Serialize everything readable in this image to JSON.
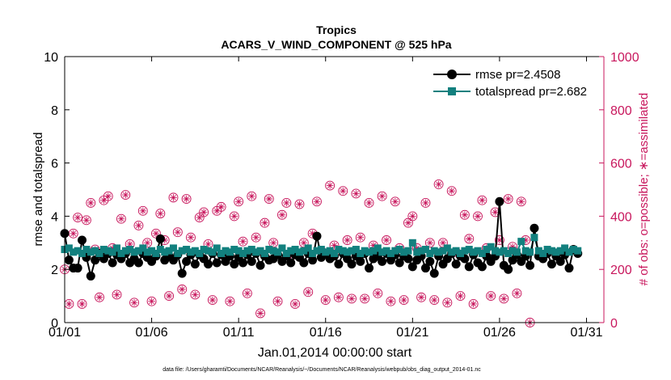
{
  "chart_data": {
    "type": "line",
    "title": "Tropics",
    "subtitle": "ACARS_V_WIND_COMPONENT @ 525 hPa",
    "xlabel": "Jan.01,2014 00:00:00 start",
    "ylabel_left": "rmse and totalspread",
    "ylabel_right": "# of obs: o=possible; ∗=assimilated",
    "xlim": [
      1,
      32
    ],
    "ylim_left": [
      0,
      10
    ],
    "ylim_right": [
      0,
      1000
    ],
    "x_ticks": [
      1,
      6,
      11,
      16,
      21,
      26,
      31
    ],
    "x_tick_labels": [
      "01/01",
      "01/06",
      "01/11",
      "01/16",
      "01/21",
      "01/26",
      "01/31"
    ],
    "y_left_ticks": [
      "0",
      "2",
      "4",
      "6",
      "8",
      "10"
    ],
    "y_right_ticks": [
      "0",
      "200",
      "400",
      "600",
      "800",
      "1000"
    ],
    "colors": {
      "rmse": "#000000",
      "spread": "#12807e",
      "obs": "#c8175d"
    },
    "legend": [
      {
        "name": "rmse pr=2.4508",
        "marker": "circle"
      },
      {
        "name": "totalspread pr=2.682",
        "marker": "square"
      }
    ],
    "legend_position": "top-right",
    "footnote": "data file: /Users/gharamti/Documents/NCAR/Reanalysis/~/Documents/NCAR/Reanalysis/webpub/obs_diag_output_2014-01.nc",
    "series": [
      {
        "name": "rmse",
        "axis": "left",
        "x_start": 1,
        "x_step": 0.25,
        "values": [
          3.35,
          2.35,
          2.05,
          2.05,
          3.1,
          2.45,
          1.75,
          2.35,
          2.6,
          2.4,
          2.6,
          2.25,
          2.55,
          2.4,
          2.6,
          2.25,
          2.4,
          2.25,
          2.6,
          2.45,
          2.3,
          2.5,
          3.15,
          2.35,
          2.5,
          2.35,
          2.55,
          1.85,
          2.3,
          2.55,
          2.2,
          2.55,
          2.4,
          2.2,
          2.6,
          2.25,
          2.55,
          2.3,
          2.5,
          2.2,
          2.45,
          2.25,
          2.55,
          2.3,
          2.6,
          2.15,
          2.5,
          2.35,
          2.4,
          2.55,
          2.3,
          2.5,
          2.25,
          2.55,
          2.45,
          2.25,
          2.6,
          2.35,
          3.25,
          2.45,
          2.6,
          2.4,
          2.5,
          2.2,
          2.6,
          2.4,
          2.2,
          2.5,
          2.3,
          2.6,
          2.05,
          2.4,
          2.5,
          2.3,
          2.6,
          2.35,
          2.55,
          2.25,
          2.5,
          2.4,
          2.1,
          2.35,
          2.5,
          2.05,
          2.3,
          1.85,
          2.5,
          2.2,
          2.4,
          2.6,
          2.2,
          2.5,
          2.4,
          2.1,
          2.55,
          2.25,
          2.1,
          2.5,
          2.3,
          2.5,
          4.55,
          2.15,
          2.0,
          2.35,
          2.55,
          2.3,
          2.5,
          2.15,
          3.55,
          2.5,
          2.4,
          2.6,
          2.2,
          2.5,
          2.3,
          2.55,
          2.05,
          2.75,
          2.6
        ]
      },
      {
        "name": "totalspread",
        "axis": "left",
        "x_start": 1,
        "x_step": 0.25,
        "values": [
          2.75,
          2.8,
          2.65,
          2.7,
          2.6,
          2.75,
          2.65,
          2.7,
          2.6,
          2.75,
          2.7,
          2.65,
          2.8,
          2.6,
          2.7,
          2.75,
          2.65,
          2.7,
          2.8,
          2.65,
          2.7,
          2.6,
          2.75,
          2.65,
          2.7,
          2.8,
          2.6,
          2.7,
          2.75,
          2.65,
          2.7,
          2.6,
          2.75,
          2.7,
          2.65,
          2.8,
          2.6,
          2.7,
          2.65,
          2.75,
          2.7,
          2.6,
          2.7,
          2.75,
          2.65,
          2.7,
          2.6,
          2.75,
          2.7,
          2.65,
          2.8,
          2.6,
          2.7,
          2.75,
          2.65,
          2.7,
          2.8,
          2.6,
          2.7,
          2.75,
          2.65,
          2.7,
          2.6,
          2.75,
          2.7,
          2.65,
          2.7,
          2.75,
          2.6,
          2.7,
          2.65,
          2.7,
          2.8,
          2.65,
          2.7,
          2.6,
          2.7,
          2.75,
          2.65,
          2.7,
          3.0,
          2.65,
          2.7,
          2.75,
          2.6,
          2.7,
          2.65,
          2.7,
          2.8,
          2.65,
          2.7,
          2.6,
          2.7,
          2.75,
          2.65,
          2.7,
          2.6,
          2.75,
          2.85,
          2.7,
          2.65,
          2.7,
          2.6,
          2.7,
          2.65,
          3.05,
          2.7,
          2.65,
          3.2,
          2.7,
          2.6,
          2.75,
          2.7,
          2.65,
          2.7,
          2.8,
          2.65,
          2.75,
          2.7
        ]
      },
      {
        "name": "obs_possible",
        "axis": "right",
        "x_start": 1,
        "x_step": 0.25,
        "values": [
          200,
          70,
          335,
          395,
          70,
          385,
          450,
          275,
          95,
          460,
          475,
          280,
          105,
          390,
          480,
          295,
          75,
          365,
          420,
          300,
          80,
          335,
          410,
          310,
          100,
          470,
          340,
          125,
          465,
          320,
          105,
          395,
          415,
          295,
          85,
          420,
          435,
          260,
          80,
          400,
          455,
          305,
          110,
          475,
          320,
          35,
          375,
          465,
          300,
          80,
          405,
          450,
          250,
          70,
          445,
          300,
          115,
          335,
          455,
          270,
          85,
          515,
          290,
          95,
          495,
          310,
          90,
          485,
          320,
          90,
          450,
          290,
          110,
          475,
          310,
          80,
          455,
          280,
          85,
          375,
          400,
          280,
          95,
          450,
          300,
          85,
          520,
          300,
          75,
          495,
          265,
          100,
          405,
          315,
          70,
          400,
          460,
          280,
          100,
          415,
          310,
          90,
          465,
          285,
          110,
          455,
          310,
          0
        ]
      },
      {
        "name": "obs_assimilated",
        "axis": "right",
        "x_start": 1,
        "x_step": 0.25,
        "values": [
          200,
          70,
          335,
          395,
          70,
          385,
          450,
          275,
          95,
          460,
          475,
          280,
          105,
          390,
          480,
          295,
          75,
          365,
          420,
          300,
          80,
          335,
          410,
          310,
          100,
          470,
          340,
          125,
          465,
          320,
          105,
          395,
          415,
          295,
          85,
          420,
          435,
          260,
          80,
          400,
          455,
          305,
          110,
          475,
          320,
          35,
          375,
          465,
          300,
          80,
          405,
          450,
          250,
          70,
          445,
          300,
          115,
          335,
          455,
          270,
          85,
          515,
          290,
          95,
          495,
          310,
          90,
          485,
          320,
          90,
          450,
          290,
          110,
          475,
          310,
          80,
          455,
          280,
          85,
          375,
          400,
          280,
          95,
          450,
          300,
          85,
          520,
          300,
          75,
          495,
          265,
          100,
          405,
          315,
          70,
          400,
          460,
          280,
          100,
          415,
          310,
          90,
          465,
          285,
          110,
          455,
          310,
          0
        ]
      }
    ]
  }
}
